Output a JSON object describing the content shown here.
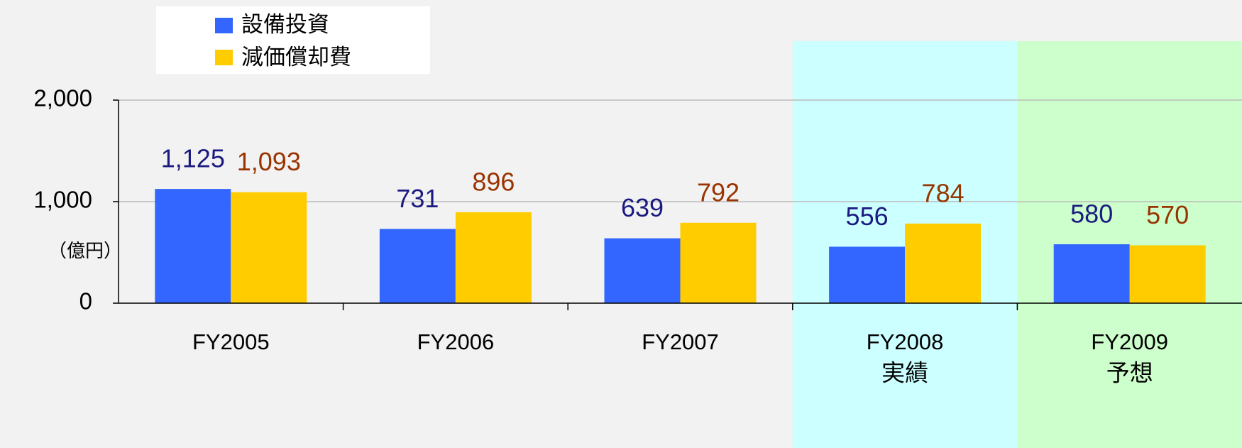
{
  "chart_data": {
    "type": "bar",
    "categories": [
      "FY2005",
      "FY2006",
      "FY2007",
      "FY2008",
      "FY2009"
    ],
    "period_labels": [
      null,
      null,
      null,
      "実績",
      "予想"
    ],
    "period_colors": [
      null,
      null,
      null,
      "#ccffff",
      "#ccffcc"
    ],
    "series": [
      {
        "name": "設備投資",
        "color": "#3366ff",
        "label_color": "#1a1a80",
        "values": [
          1125,
          731,
          639,
          556,
          580
        ],
        "value_labels": [
          "1,125",
          "731",
          "639",
          "556",
          "580"
        ]
      },
      {
        "name": "減価償却費",
        "color": "#ffcc00",
        "label_color": "#993300",
        "values": [
          1093,
          896,
          792,
          784,
          570
        ],
        "value_labels": [
          "1,093",
          "896",
          "792",
          "784",
          "570"
        ]
      }
    ],
    "y_label": "（億円）",
    "ylim": [
      0,
      2000
    ],
    "yticks": [
      0,
      {
        "value": 1000,
        "label": "1,000"
      },
      {
        "value": 2000,
        "label": "2,000"
      }
    ],
    "grid": true
  }
}
